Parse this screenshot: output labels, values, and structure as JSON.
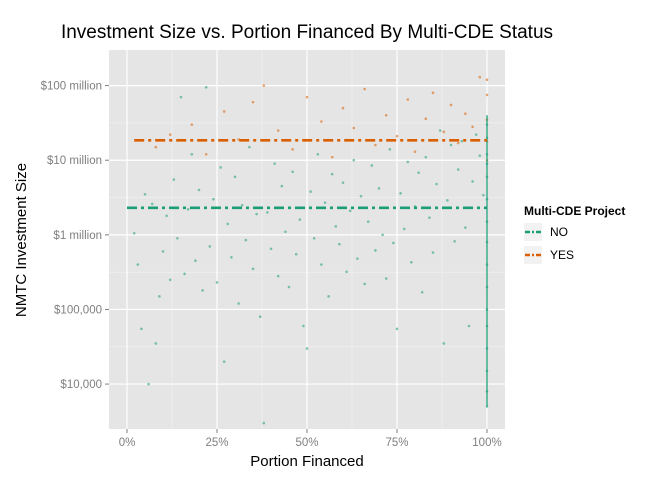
{
  "chart_data": {
    "type": "scatter",
    "title": "Investment Size vs. Portion Financed By Multi-CDE Status",
    "xlabel": "Portion Financed",
    "ylabel": "NMTC Investment Size",
    "x_ticks": [
      {
        "value": 0.0,
        "label": "0%"
      },
      {
        "value": 0.25,
        "label": "25%"
      },
      {
        "value": 0.5,
        "label": "50%"
      },
      {
        "value": 0.75,
        "label": "75%"
      },
      {
        "value": 1.0,
        "label": "100%"
      }
    ],
    "y_ticks": [
      {
        "value": 10000,
        "label": "$10,000"
      },
      {
        "value": 100000,
        "label": "$100,000"
      },
      {
        "value": 1000000,
        "label": "$1 million"
      },
      {
        "value": 10000000,
        "label": "$10 million"
      },
      {
        "value": 100000000,
        "label": "$100 million"
      }
    ],
    "xlim": [
      -0.05,
      1.05
    ],
    "ylim": [
      2500,
      300000000
    ],
    "y_scale": "log",
    "grid": true,
    "legend": {
      "title": "Multi-CDE Project",
      "position": "right",
      "entries": [
        {
          "label": "NO",
          "color": "#1b9e77"
        },
        {
          "label": "YES",
          "color": "#d95f02"
        }
      ]
    },
    "series": [
      {
        "name": "NO",
        "color": "#1b9e77",
        "mean_line": {
          "x": [
            0.0,
            1.0
          ],
          "y": 2300000
        },
        "points": [
          [
            0.02,
            1050000
          ],
          [
            0.03,
            400000
          ],
          [
            0.04,
            55000
          ],
          [
            0.05,
            3500000
          ],
          [
            0.06,
            10000
          ],
          [
            0.07,
            2600000
          ],
          [
            0.08,
            35000
          ],
          [
            0.09,
            150000
          ],
          [
            0.1,
            600000
          ],
          [
            0.11,
            1800000
          ],
          [
            0.12,
            250000
          ],
          [
            0.13,
            5500000
          ],
          [
            0.14,
            900000
          ],
          [
            0.15,
            70000000
          ],
          [
            0.16,
            300000
          ],
          [
            0.17,
            2200000
          ],
          [
            0.18,
            12000000
          ],
          [
            0.19,
            450000
          ],
          [
            0.2,
            4000000
          ],
          [
            0.21,
            180000
          ],
          [
            0.22,
            95000000
          ],
          [
            0.23,
            700000
          ],
          [
            0.24,
            3000000
          ],
          [
            0.25,
            230000
          ],
          [
            0.26,
            8000000
          ],
          [
            0.27,
            20000
          ],
          [
            0.28,
            1400000
          ],
          [
            0.29,
            500000
          ],
          [
            0.3,
            6000000
          ],
          [
            0.31,
            120000
          ],
          [
            0.32,
            2500000
          ],
          [
            0.33,
            850000
          ],
          [
            0.34,
            15000000
          ],
          [
            0.35,
            350000
          ],
          [
            0.36,
            1900000
          ],
          [
            0.37,
            80000
          ],
          [
            0.38,
            3000
          ],
          [
            0.39,
            2000000
          ],
          [
            0.4,
            650000
          ],
          [
            0.41,
            9000000
          ],
          [
            0.42,
            280000
          ],
          [
            0.43,
            4500000
          ],
          [
            0.44,
            1100000
          ],
          [
            0.45,
            200000
          ],
          [
            0.46,
            7000000
          ],
          [
            0.47,
            550000
          ],
          [
            0.48,
            1600000
          ],
          [
            0.49,
            60000
          ],
          [
            0.5,
            30000
          ],
          [
            0.51,
            3800000
          ],
          [
            0.52,
            900000
          ],
          [
            0.53,
            12000000
          ],
          [
            0.54,
            400000
          ],
          [
            0.55,
            2700000
          ],
          [
            0.56,
            150000
          ],
          [
            0.57,
            6500000
          ],
          [
            0.58,
            1300000
          ],
          [
            0.59,
            750000
          ],
          [
            0.6,
            5000000
          ],
          [
            0.61,
            320000
          ],
          [
            0.62,
            2100000
          ],
          [
            0.63,
            10000000
          ],
          [
            0.64,
            480000
          ],
          [
            0.65,
            3300000
          ],
          [
            0.66,
            220000
          ],
          [
            0.67,
            1500000
          ],
          [
            0.68,
            8500000
          ],
          [
            0.69,
            620000
          ],
          [
            0.7,
            4200000
          ],
          [
            0.71,
            1000000
          ],
          [
            0.72,
            260000
          ],
          [
            0.73,
            14000000
          ],
          [
            0.74,
            780000
          ],
          [
            0.75,
            55000
          ],
          [
            0.76,
            3600000
          ],
          [
            0.77,
            1200000
          ],
          [
            0.78,
            9500000
          ],
          [
            0.79,
            430000
          ],
          [
            0.8,
            2400000
          ],
          [
            0.81,
            6800000
          ],
          [
            0.82,
            170000
          ],
          [
            0.83,
            11000000
          ],
          [
            0.84,
            1700000
          ],
          [
            0.85,
            580000
          ],
          [
            0.86,
            4800000
          ],
          [
            0.87,
            25000000
          ],
          [
            0.88,
            35000
          ],
          [
            0.89,
            2900000
          ],
          [
            0.9,
            16000000
          ],
          [
            0.91,
            820000
          ],
          [
            0.92,
            7500000
          ],
          [
            0.93,
            18000000
          ],
          [
            0.94,
            1250000
          ],
          [
            0.95,
            60000
          ],
          [
            0.96,
            5200000
          ],
          [
            0.97,
            22000000
          ],
          [
            0.98,
            11500000
          ],
          [
            0.99,
            3400000
          ],
          [
            1.0,
            5000
          ],
          [
            1.0,
            8000
          ],
          [
            1.0,
            15000
          ],
          [
            1.0,
            30000
          ],
          [
            1.0,
            60000
          ],
          [
            1.0,
            100000
          ],
          [
            1.0,
            200000
          ],
          [
            1.0,
            400000
          ],
          [
            1.0,
            800000
          ],
          [
            1.0,
            1500000
          ],
          [
            1.0,
            3000000
          ],
          [
            1.0,
            6000000
          ],
          [
            1.0,
            9000000
          ],
          [
            1.0,
            12000000
          ],
          [
            1.0,
            20000000
          ],
          [
            1.0,
            30000000
          ]
        ]
      },
      {
        "name": "YES",
        "color": "#d95f02",
        "mean_line": {
          "x": [
            0.02,
            1.0
          ],
          "y": 18500000
        },
        "points": [
          [
            0.08,
            15000000
          ],
          [
            0.12,
            22000000
          ],
          [
            0.18,
            30000000
          ],
          [
            0.22,
            12000000
          ],
          [
            0.27,
            45000000
          ],
          [
            0.31,
            19000000
          ],
          [
            0.35,
            60000000
          ],
          [
            0.38,
            100000000
          ],
          [
            0.42,
            25000000
          ],
          [
            0.46,
            14000000
          ],
          [
            0.5,
            70000000
          ],
          [
            0.54,
            33000000
          ],
          [
            0.57,
            11000000
          ],
          [
            0.6,
            50000000
          ],
          [
            0.63,
            27000000
          ],
          [
            0.66,
            90000000
          ],
          [
            0.69,
            16000000
          ],
          [
            0.72,
            40000000
          ],
          [
            0.75,
            21000000
          ],
          [
            0.78,
            65000000
          ],
          [
            0.8,
            13000000
          ],
          [
            0.83,
            36000000
          ],
          [
            0.85,
            80000000
          ],
          [
            0.88,
            24000000
          ],
          [
            0.9,
            55000000
          ],
          [
            0.92,
            17000000
          ],
          [
            0.94,
            42000000
          ],
          [
            0.96,
            28000000
          ],
          [
            0.98,
            130000000
          ],
          [
            1.0,
            10000000
          ],
          [
            1.0,
            18000000
          ],
          [
            1.0,
            35000000
          ],
          [
            1.0,
            75000000
          ],
          [
            1.0,
            120000000
          ]
        ]
      }
    ]
  }
}
